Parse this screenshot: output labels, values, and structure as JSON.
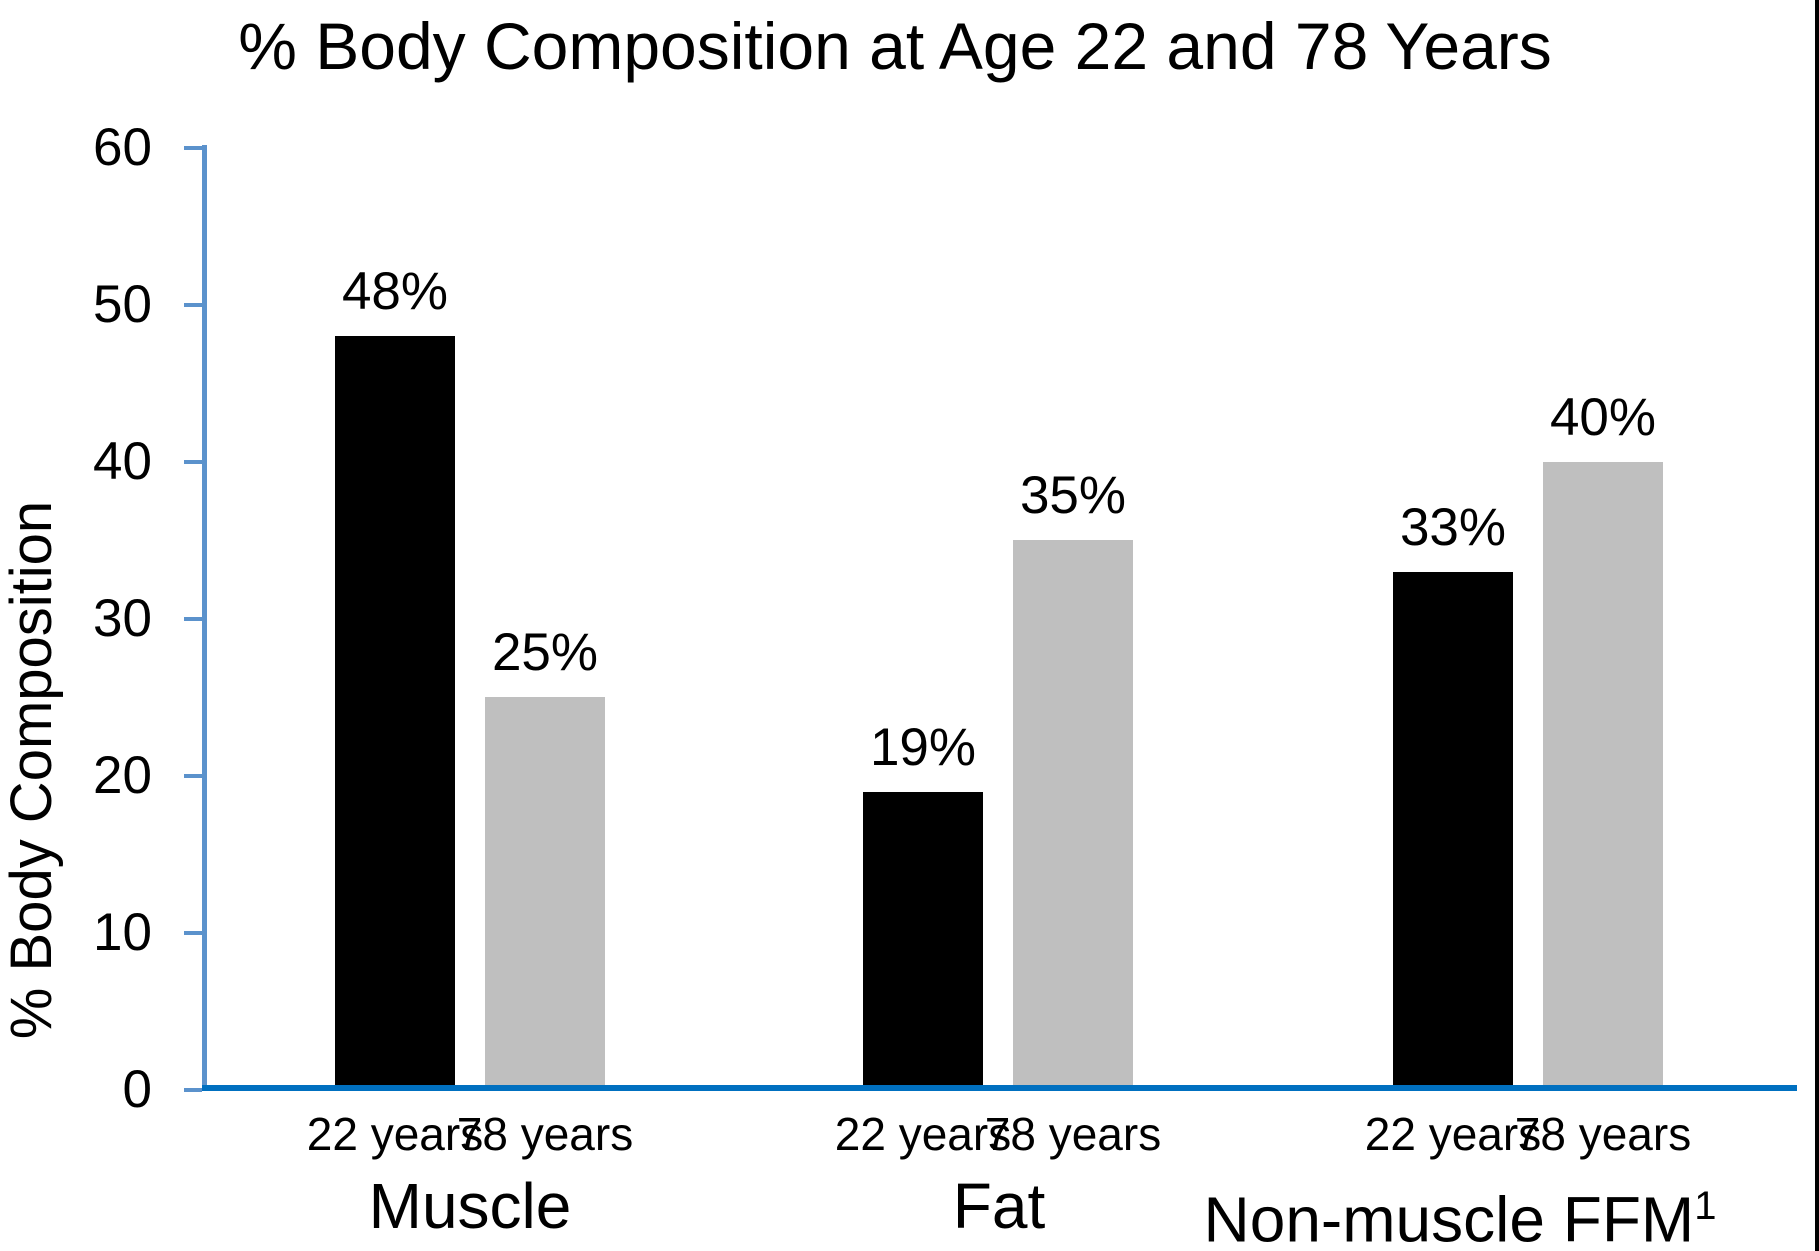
{
  "chart_data": {
    "type": "bar",
    "title": "% Body Composition at Age 22 and 78 Years",
    "ylabel": "% Body Composition",
    "xlabel": "",
    "ylim": [
      0,
      60
    ],
    "yticks": [
      0,
      10,
      20,
      30,
      40,
      50,
      60
    ],
    "grid": false,
    "legend": "none",
    "value_suffix": "%",
    "categories": [
      {
        "label": "Muscle",
        "sup": ""
      },
      {
        "label": "Fat",
        "sup": ""
      },
      {
        "label": "Non-muscle FFM",
        "sup": "1"
      }
    ],
    "series": [
      {
        "name": "22 years",
        "color": "#000000",
        "values": [
          48,
          19,
          33
        ]
      },
      {
        "name": "78 years",
        "color": "#BFBFBF",
        "values": [
          25,
          35,
          40
        ]
      }
    ],
    "data_labels": {
      "muscle_22_years": "48%",
      "muscle_78_years": "25%",
      "fat_22_years": "19%",
      "fat_78_years": "35%",
      "non_muscle_ffm_22_years": "33%",
      "non_muscle_ffm_78_years": "40%"
    },
    "colors": {
      "axis_vertical": "#5B92CC",
      "axis_horizontal": "#0070C0",
      "text": "#000000",
      "background": "#FFFFFF",
      "frame_right_border": "#000000"
    }
  }
}
